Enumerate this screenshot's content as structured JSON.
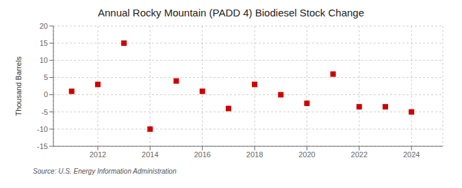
{
  "chart_data": {
    "type": "scatter",
    "title": "Annual Rocky Mountain (PADD 4) Biodiesel Stock Change",
    "ylabel": "Thousand Barrels",
    "source": "Source: U.S. Energy Information Administration",
    "x": [
      2011,
      2012,
      2013,
      2014,
      2015,
      2016,
      2017,
      2018,
      2019,
      2020,
      2021,
      2022,
      2023,
      2024
    ],
    "values": [
      1.0,
      3.0,
      15.0,
      -10.0,
      4.0,
      1.0,
      -4.0,
      3.0,
      0.0,
      -2.5,
      6.0,
      -3.5,
      -3.5,
      -5.0
    ],
    "color": "#cc0000",
    "marker": "square",
    "xlim": [
      2010.3,
      2025.2
    ],
    "xticks": [
      2012,
      2014,
      2016,
      2018,
      2020,
      2022,
      2024
    ],
    "ylim": [
      -15,
      20
    ],
    "yticks": [
      -15,
      -10,
      -5,
      0,
      5,
      10,
      15,
      20
    ],
    "grid": true
  }
}
